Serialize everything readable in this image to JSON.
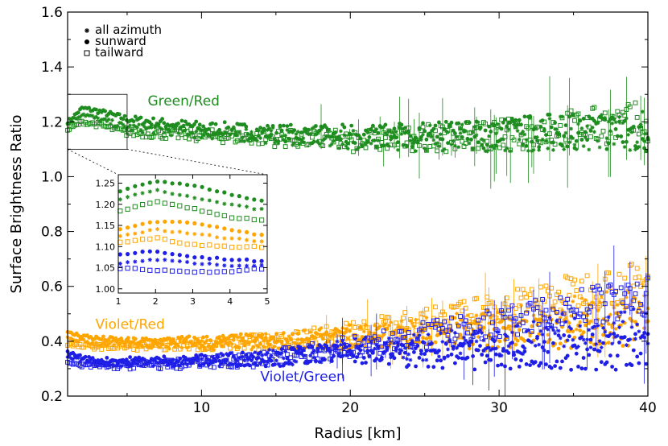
{
  "chart_data": {
    "type": "scatter",
    "title": "",
    "xlabel": "Radius [km]",
    "ylabel": "Surface Brightness Ratio",
    "xlim": [
      1,
      40
    ],
    "ylim": [
      0.2,
      1.6
    ],
    "xticks": [
      10,
      20,
      30,
      40
    ],
    "yticks": [
      0.2,
      0.4,
      0.6,
      0.8,
      1.0,
      1.2,
      1.4,
      1.6
    ],
    "ytick_labels": [
      "0.2",
      "0.4",
      "0.6",
      "0.8",
      "1.0",
      "1.2",
      "1.4",
      "1.6"
    ],
    "grid": false,
    "legend_position": "top-left",
    "legend": [
      {
        "marker": "asterisk",
        "label": "all azimuth"
      },
      {
        "marker": "filled-circle",
        "label": "sunward"
      },
      {
        "marker": "open-square",
        "label": "tailward"
      }
    ],
    "annotations": [
      {
        "text": "Green/Red",
        "x": 8.8,
        "y": 1.26,
        "color": "#1e8c1e"
      },
      {
        "text": "Violet/Red",
        "x": 5.2,
        "y": 0.445,
        "color": "#ffa500"
      },
      {
        "text": "Violet/Green",
        "x": 16.8,
        "y": 0.255,
        "color": "#1e1ee6"
      }
    ],
    "colors": {
      "green_red": "#1e8c1e",
      "violet_red": "#ffa500",
      "violet_green": "#1e1ee6"
    },
    "series": [
      {
        "ratio": "Green/Red",
        "azimuth": "sunward",
        "color": "#1e8c1e",
        "marker": "filled-circle",
        "x": [
          1,
          2,
          3,
          5,
          10,
          15,
          20,
          25,
          30,
          35,
          40
        ],
        "y": [
          1.2,
          1.25,
          1.24,
          1.21,
          1.18,
          1.16,
          1.15,
          1.15,
          1.16,
          1.17,
          1.16
        ]
      },
      {
        "ratio": "Green/Red",
        "azimuth": "all azimuth",
        "color": "#1e8c1e",
        "marker": "asterisk",
        "x": [
          1,
          2,
          3,
          5,
          10,
          15,
          20,
          25,
          30,
          35,
          40
        ],
        "y": [
          1.19,
          1.23,
          1.21,
          1.18,
          1.16,
          1.15,
          1.14,
          1.14,
          1.15,
          1.16,
          1.17
        ]
      },
      {
        "ratio": "Green/Red",
        "azimuth": "tailward",
        "color": "#1e8c1e",
        "marker": "open-square",
        "x": [
          1,
          2,
          3,
          5,
          10,
          15,
          20,
          25,
          30,
          35,
          40
        ],
        "y": [
          1.17,
          1.2,
          1.19,
          1.16,
          1.15,
          1.14,
          1.13,
          1.14,
          1.15,
          1.18,
          1.2
        ]
      },
      {
        "ratio": "Violet/Red",
        "azimuth": "sunward",
        "color": "#ffa500",
        "marker": "filled-circle",
        "x": [
          1,
          2,
          3,
          5,
          10,
          15,
          20,
          25,
          30,
          35,
          40
        ],
        "y": [
          0.43,
          0.42,
          0.41,
          0.4,
          0.4,
          0.4,
          0.41,
          0.42,
          0.42,
          0.44,
          0.46
        ]
      },
      {
        "ratio": "Violet/Red",
        "azimuth": "all azimuth",
        "color": "#ffa500",
        "marker": "asterisk",
        "x": [
          1,
          2,
          3,
          5,
          10,
          15,
          20,
          25,
          30,
          35,
          40
        ],
        "y": [
          0.41,
          0.4,
          0.39,
          0.39,
          0.39,
          0.4,
          0.42,
          0.44,
          0.46,
          0.5,
          0.52
        ]
      },
      {
        "ratio": "Violet/Red",
        "azimuth": "tailward",
        "color": "#ffa500",
        "marker": "open-square",
        "x": [
          1,
          2,
          3,
          5,
          10,
          15,
          20,
          25,
          30,
          35,
          40
        ],
        "y": [
          0.39,
          0.38,
          0.38,
          0.38,
          0.39,
          0.4,
          0.43,
          0.47,
          0.52,
          0.58,
          0.62
        ]
      },
      {
        "ratio": "Violet/Green",
        "azimuth": "sunward",
        "color": "#1e1ee6",
        "marker": "filled-circle",
        "x": [
          1,
          2,
          3,
          5,
          10,
          15,
          20,
          25,
          30,
          35,
          40
        ],
        "y": [
          0.36,
          0.34,
          0.33,
          0.33,
          0.33,
          0.34,
          0.36,
          0.35,
          0.35,
          0.36,
          0.36
        ]
      },
      {
        "ratio": "Violet/Green",
        "azimuth": "all azimuth",
        "color": "#1e1ee6",
        "marker": "asterisk",
        "x": [
          1,
          2,
          3,
          5,
          10,
          15,
          20,
          25,
          30,
          35,
          40
        ],
        "y": [
          0.34,
          0.33,
          0.32,
          0.32,
          0.33,
          0.34,
          0.37,
          0.38,
          0.4,
          0.44,
          0.46
        ]
      },
      {
        "ratio": "Violet/Green",
        "azimuth": "tailward",
        "color": "#1e1ee6",
        "marker": "open-square",
        "x": [
          1,
          2,
          3,
          5,
          10,
          15,
          20,
          25,
          30,
          35,
          40
        ],
        "y": [
          0.32,
          0.31,
          0.31,
          0.31,
          0.32,
          0.34,
          0.38,
          0.42,
          0.46,
          0.52,
          0.56
        ]
      }
    ],
    "inset": {
      "xlim": [
        1,
        5
      ],
      "ylim": [
        0.99,
        1.27
      ],
      "xticks": [
        1,
        2,
        3,
        4,
        5
      ],
      "yticks": [
        1.0,
        1.05,
        1.1,
        1.15,
        1.2,
        1.25
      ],
      "ytick_labels": [
        "1.00",
        "1.05",
        "1.10",
        "1.15",
        "1.20",
        "1.25"
      ],
      "zoom_region": {
        "x": [
          1,
          5
        ],
        "y": [
          1.1,
          1.3
        ]
      },
      "series": [
        {
          "color": "#1e8c1e",
          "marker": "filled-circle",
          "x": [
            1,
            2,
            3,
            4,
            5
          ],
          "y": [
            1.23,
            1.255,
            1.245,
            1.225,
            1.205
          ]
        },
        {
          "color": "#1e8c1e",
          "marker": "asterisk",
          "x": [
            1,
            2,
            3,
            4,
            5
          ],
          "y": [
            1.21,
            1.235,
            1.215,
            1.2,
            1.185
          ]
        },
        {
          "color": "#1e8c1e",
          "marker": "open-square",
          "x": [
            1,
            2,
            3,
            4,
            5
          ],
          "y": [
            1.185,
            1.205,
            1.19,
            1.17,
            1.16
          ]
        },
        {
          "color": "#ffa500",
          "marker": "filled-circle",
          "x": [
            1,
            2,
            3,
            4,
            5
          ],
          "y": [
            1.14,
            1.16,
            1.155,
            1.14,
            1.125
          ]
        },
        {
          "color": "#ffa500",
          "marker": "asterisk",
          "x": [
            1,
            2,
            3,
            4,
            5
          ],
          "y": [
            1.125,
            1.14,
            1.13,
            1.12,
            1.11
          ]
        },
        {
          "color": "#ffa500",
          "marker": "open-square",
          "x": [
            1,
            2,
            3,
            4,
            5
          ],
          "y": [
            1.11,
            1.12,
            1.105,
            1.1,
            1.1
          ]
        },
        {
          "color": "#1e1ee6",
          "marker": "filled-circle",
          "x": [
            1,
            2,
            3,
            4,
            5
          ],
          "y": [
            1.08,
            1.09,
            1.075,
            1.07,
            1.065
          ]
        },
        {
          "color": "#1e1ee6",
          "marker": "asterisk",
          "x": [
            1,
            2,
            3,
            4,
            5
          ],
          "y": [
            1.06,
            1.07,
            1.06,
            1.055,
            1.055
          ]
        },
        {
          "color": "#1e1ee6",
          "marker": "open-square",
          "x": [
            1,
            2,
            3,
            4,
            5
          ],
          "y": [
            1.05,
            1.045,
            1.04,
            1.04,
            1.05
          ]
        }
      ]
    }
  }
}
